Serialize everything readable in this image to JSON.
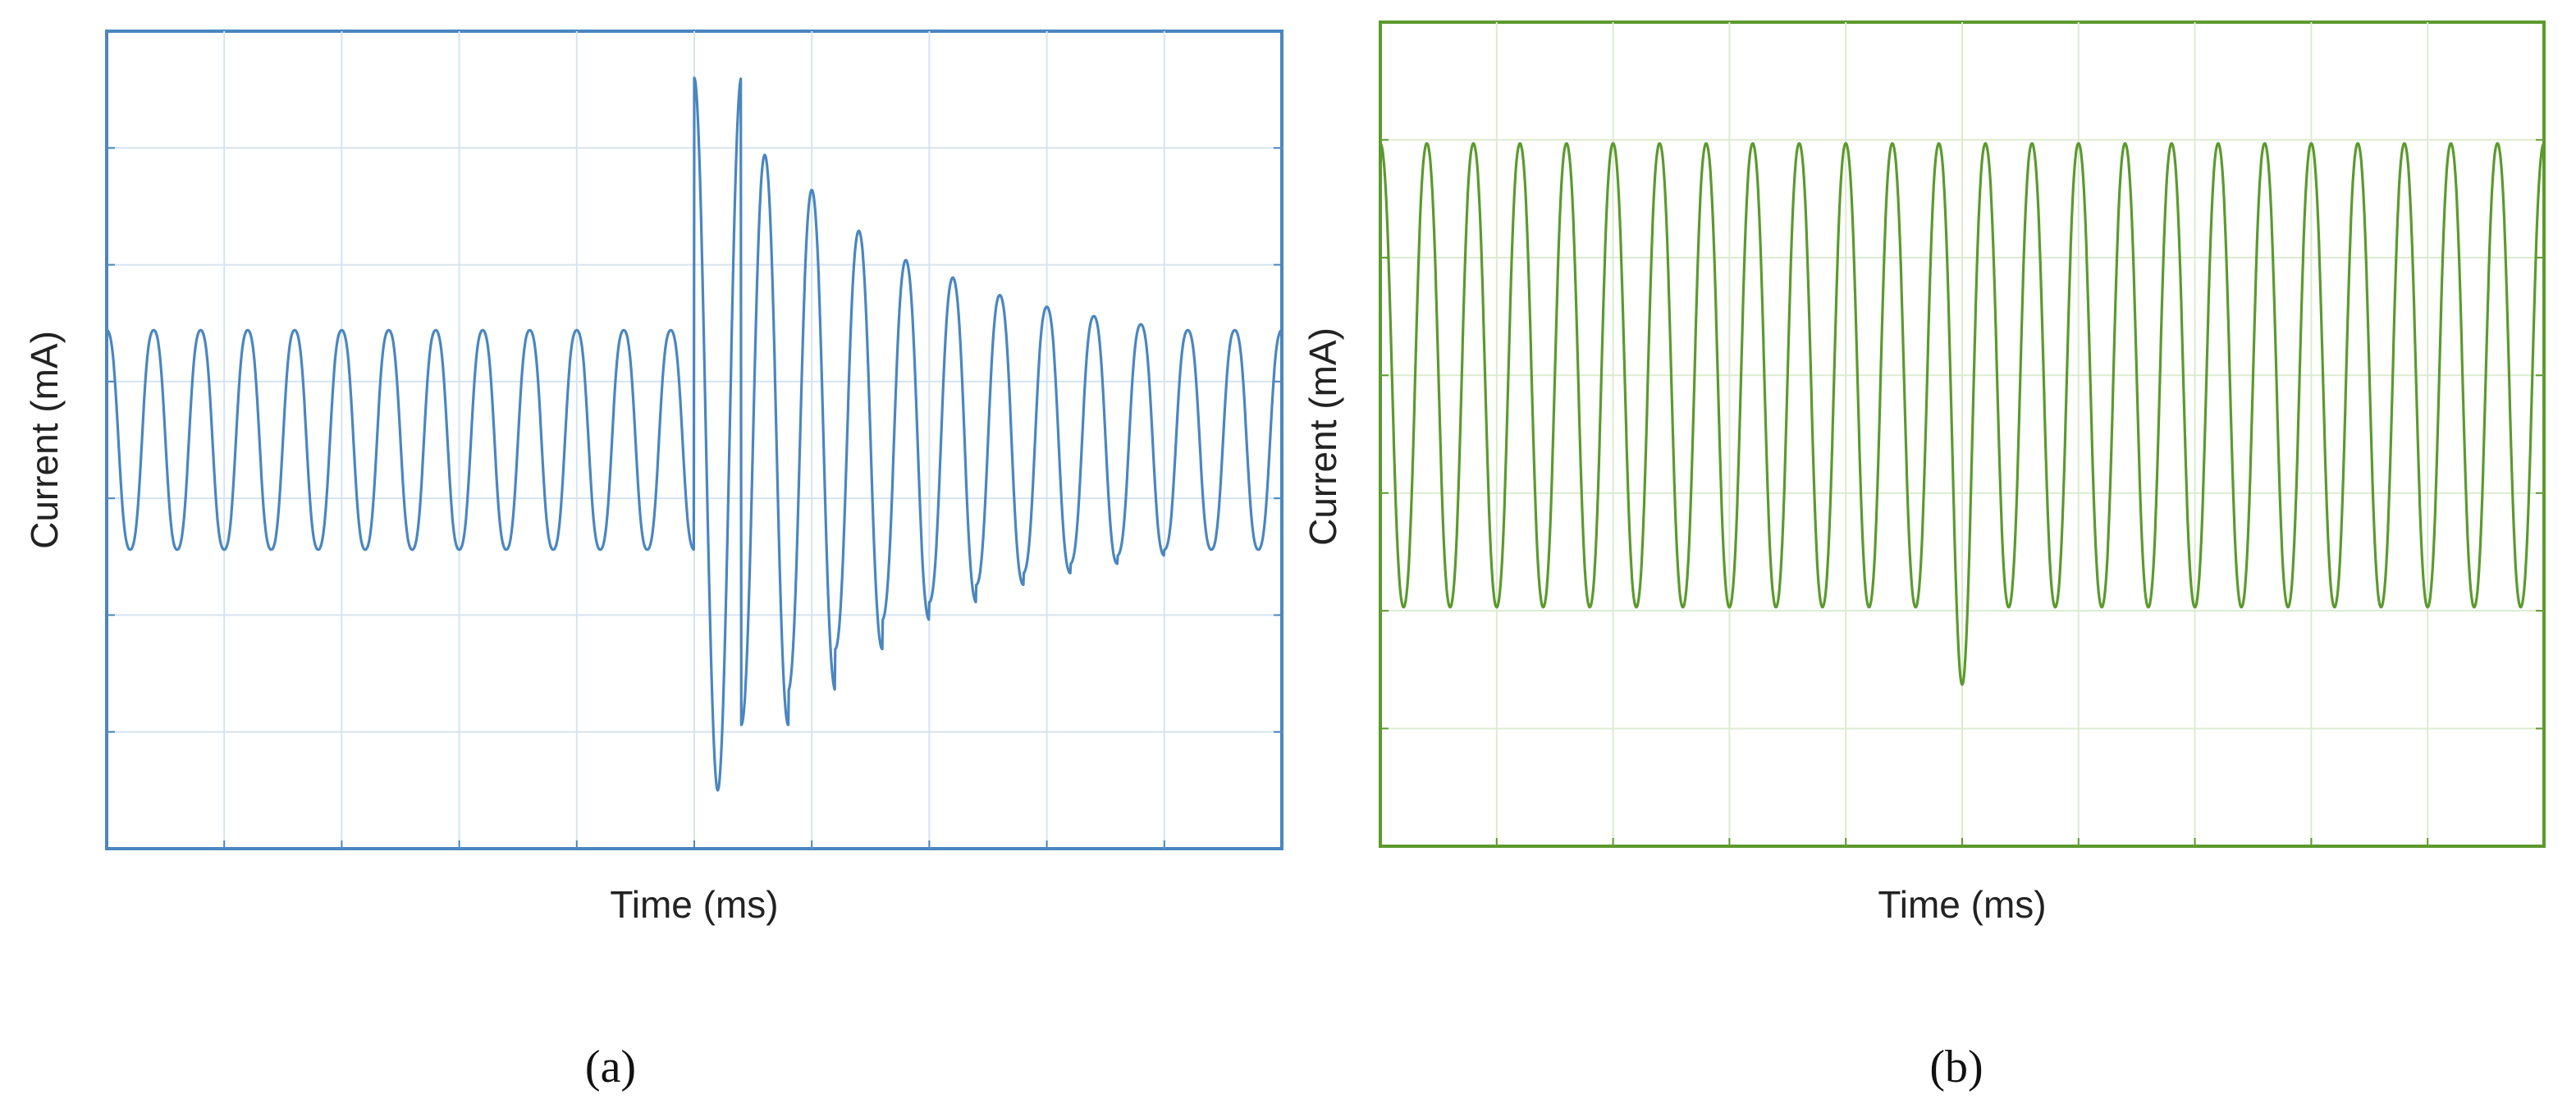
{
  "chart_data": [
    {
      "type": "line",
      "panel": "a",
      "caption": "(a)",
      "xlabel": "Time (ms)",
      "ylabel": "Current (mA)",
      "color": "#4a86bf",
      "grid": true,
      "xlim": [
        0,
        10
      ],
      "ylim": [
        -3.5,
        3.5
      ],
      "waveform": {
        "cycles": 25,
        "baseline_amplitude": 1.0,
        "disturbance_x": 5.0,
        "peak_high": 3.0,
        "peak_low": -3.1,
        "decay_amplitudes": [
          2.8,
          2.5,
          2.2,
          1.85,
          1.6,
          1.45,
          1.3,
          1.2,
          1.12,
          1.05
        ]
      }
    },
    {
      "type": "line",
      "panel": "b",
      "caption": "(b)",
      "xlabel": "Time (ms)",
      "ylabel": "Current (mA)",
      "color": "#5b9a2e",
      "grid": true,
      "xlim": [
        0,
        10
      ],
      "ylim": [
        -3.5,
        3.5
      ],
      "waveform": {
        "cycles": 25,
        "baseline_amplitude": 2.05,
        "offset": 0.5,
        "disturbance_x": 5.0,
        "spike_low": -2.2
      }
    }
  ]
}
